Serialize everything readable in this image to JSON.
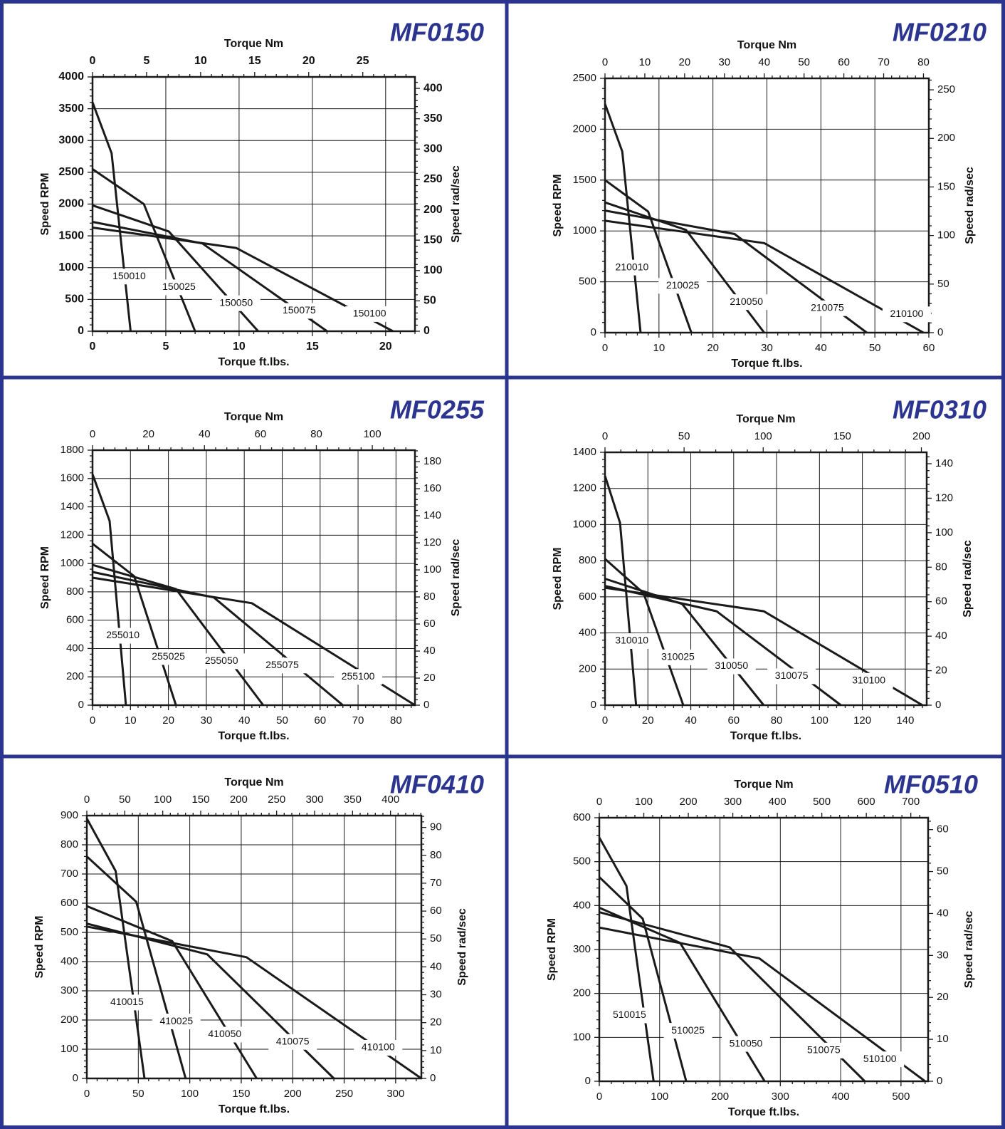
{
  "colors": {
    "frame": "#2b3590",
    "title": "#2b3590",
    "line": "#1a1a1a",
    "grid": "#1a1a1a"
  },
  "chart_data": [
    {
      "type": "line",
      "title": "MF0150",
      "x_label": "Torque ft.lbs.",
      "x2_label": "Torque Nm",
      "y_label": "Speed RPM",
      "y2_label": "Speed rad/sec",
      "x_ticks": [
        "0",
        "5",
        "10",
        "15",
        "20"
      ],
      "x2_ticks": [
        "0",
        "5",
        "10",
        "15",
        "20",
        "25"
      ],
      "y_ticks": [
        "0",
        "500",
        "1000",
        "1500",
        "2000",
        "2500",
        "3000",
        "3500",
        "4000"
      ],
      "y2_ticks": [
        "0",
        "50",
        "100",
        "150",
        "200",
        "250",
        "300",
        "350",
        "400"
      ],
      "xlim": [
        0,
        22
      ],
      "ylim": [
        0,
        4000
      ],
      "x2_per_x": 1.3558,
      "y2_per_y": 0.10472,
      "grid": true,
      "tick_style": "bold",
      "series": [
        {
          "name": "150010",
          "points": [
            [
              0,
              3600
            ],
            [
              1.3,
              2800
            ],
            [
              2.6,
              0
            ]
          ],
          "label_at": [
            2.5,
            860
          ]
        },
        {
          "name": "150025",
          "points": [
            [
              0,
              2550
            ],
            [
              3.5,
              2000
            ],
            [
              7,
              0
            ]
          ],
          "label_at": [
            5.9,
            690
          ]
        },
        {
          "name": "150050",
          "points": [
            [
              0,
              1980
            ],
            [
              5.2,
              1570
            ],
            [
              11.3,
              0
            ]
          ],
          "label_at": [
            9.8,
            440
          ]
        },
        {
          "name": "150075",
          "points": [
            [
              0,
              1720
            ],
            [
              7.5,
              1380
            ],
            [
              16,
              0
            ]
          ],
          "label_at": [
            14.1,
            320
          ]
        },
        {
          "name": "150100",
          "points": [
            [
              0,
              1630
            ],
            [
              9.8,
              1310
            ],
            [
              20.5,
              0
            ]
          ],
          "label_at": [
            18.9,
            270
          ]
        }
      ]
    },
    {
      "type": "line",
      "title": "MF0210",
      "x_label": "Torque ft.lbs.",
      "x2_label": "Torque Nm",
      "y_label": "Speed RPM",
      "y2_label": "Speed rad/sec",
      "x_ticks": [
        "0",
        "10",
        "20",
        "30",
        "40",
        "50",
        "60"
      ],
      "x2_ticks": [
        "0",
        "10",
        "20",
        "30",
        "40",
        "50",
        "60",
        "70",
        "80"
      ],
      "y_ticks": [
        "0",
        "500",
        "1000",
        "1500",
        "2000",
        "2500"
      ],
      "y2_ticks": [
        "0",
        "50",
        "100",
        "150",
        "200",
        "250"
      ],
      "xlim": [
        0,
        60
      ],
      "ylim": [
        0,
        2500
      ],
      "x2_per_x": 1.3558,
      "y2_per_y": 0.10472,
      "grid": true,
      "tick_style": "normal",
      "series": [
        {
          "name": "210010",
          "points": [
            [
              0,
              2250
            ],
            [
              3.2,
              1780
            ],
            [
              6.6,
              0
            ]
          ],
          "label_at": [
            5,
            640
          ]
        },
        {
          "name": "210025",
          "points": [
            [
              0,
              1500
            ],
            [
              8,
              1190
            ],
            [
              16,
              0
            ]
          ],
          "label_at": [
            14.4,
            460
          ]
        },
        {
          "name": "210050",
          "points": [
            [
              0,
              1280
            ],
            [
              15,
              1010
            ],
            [
              29.5,
              0
            ]
          ],
          "label_at": [
            26.2,
            300
          ]
        },
        {
          "name": "210075",
          "points": [
            [
              0,
              1200
            ],
            [
              24,
              970
            ],
            [
              48.5,
              0
            ]
          ],
          "label_at": [
            41.2,
            240
          ]
        },
        {
          "name": "210100",
          "points": [
            [
              0,
              1100
            ],
            [
              29.5,
              880
            ],
            [
              59,
              0
            ]
          ],
          "label_at": [
            55.9,
            180
          ]
        }
      ]
    },
    {
      "type": "line",
      "title": "MF0255",
      "x_label": "Torque ft.lbs.",
      "x2_label": "Torque Nm",
      "y_label": "Speed RPM",
      "y2_label": "Speed rad/sec",
      "x_ticks": [
        "0",
        "10",
        "20",
        "30",
        "40",
        "50",
        "60",
        "70",
        "80"
      ],
      "x2_ticks": [
        "0",
        "20",
        "40",
        "60",
        "80",
        "100"
      ],
      "y_ticks": [
        "0",
        "200",
        "400",
        "600",
        "800",
        "1000",
        "1200",
        "1400",
        "1600",
        "1800"
      ],
      "y2_ticks": [
        "0",
        "20",
        "40",
        "60",
        "80",
        "100",
        "120",
        "140",
        "160",
        "180"
      ],
      "xlim": [
        0,
        85
      ],
      "ylim": [
        0,
        1800
      ],
      "x2_per_x": 1.3558,
      "y2_per_y": 0.10472,
      "grid": true,
      "tick_style": "normal",
      "series": [
        {
          "name": "255010",
          "points": [
            [
              0,
              1630
            ],
            [
              4.5,
              1300
            ],
            [
              8.8,
              0
            ]
          ],
          "label_at": [
            8,
            490
          ]
        },
        {
          "name": "255025",
          "points": [
            [
              0,
              1140
            ],
            [
              11,
              910
            ],
            [
              22,
              0
            ]
          ],
          "label_at": [
            20,
            340
          ]
        },
        {
          "name": "255050",
          "points": [
            [
              0,
              990
            ],
            [
              22,
              820
            ],
            [
              45,
              0
            ]
          ],
          "label_at": [
            34,
            310
          ]
        },
        {
          "name": "255075",
          "points": [
            [
              0,
              940
            ],
            [
              32,
              760
            ],
            [
              66,
              0
            ]
          ],
          "label_at": [
            50,
            280
          ]
        },
        {
          "name": "255100",
          "points": [
            [
              0,
              900
            ],
            [
              42,
              720
            ],
            [
              85,
              0
            ]
          ],
          "label_at": [
            70,
            200
          ]
        }
      ]
    },
    {
      "type": "line",
      "title": "MF0310",
      "x_label": "Torque ft.lbs.",
      "x2_label": "Torque Nm",
      "y_label": "Speed RPM",
      "y2_label": "Speed rad/sec",
      "x_ticks": [
        "0",
        "20",
        "40",
        "60",
        "80",
        "100",
        "120",
        "140"
      ],
      "x2_ticks": [
        "0",
        "50",
        "100",
        "150",
        "200"
      ],
      "y_ticks": [
        "0",
        "200",
        "400",
        "600",
        "800",
        "1000",
        "1200",
        "1400"
      ],
      "y2_ticks": [
        "0",
        "20",
        "40",
        "60",
        "80",
        "100",
        "120",
        "140"
      ],
      "xlim": [
        0,
        150
      ],
      "ylim": [
        0,
        1400
      ],
      "x2_per_x": 1.3558,
      "y2_per_y": 0.10472,
      "grid": true,
      "tick_style": "normal",
      "series": [
        {
          "name": "310010",
          "points": [
            [
              0,
              1270
            ],
            [
              7,
              1010
            ],
            [
              14.5,
              0
            ]
          ],
          "label_at": [
            12.5,
            355
          ]
        },
        {
          "name": "310025",
          "points": [
            [
              0,
              810
            ],
            [
              18,
              620
            ],
            [
              36.5,
              0
            ]
          ],
          "label_at": [
            34,
            265
          ]
        },
        {
          "name": "310050",
          "points": [
            [
              0,
              700
            ],
            [
              36,
              560
            ],
            [
              74,
              0
            ]
          ],
          "label_at": [
            59,
            215
          ]
        },
        {
          "name": "310075",
          "points": [
            [
              0,
              660
            ],
            [
              52,
              520
            ],
            [
              110,
              0
            ]
          ],
          "label_at": [
            87,
            160
          ]
        },
        {
          "name": "310100",
          "points": [
            [
              0,
              650
            ],
            [
              74,
              520
            ],
            [
              148,
              0
            ]
          ],
          "label_at": [
            123,
            135
          ]
        }
      ]
    },
    {
      "type": "line",
      "title": "MF0410",
      "x_label": "Torque ft.lbs.",
      "x2_label": "Torque Nm",
      "y_label": "Speed RPM",
      "y2_label": "Speed rad/sec",
      "x_ticks": [
        "0",
        "50",
        "100",
        "150",
        "200",
        "250",
        "300"
      ],
      "x2_ticks": [
        "0",
        "50",
        "100",
        "150",
        "200",
        "250",
        "300",
        "350",
        "400"
      ],
      "y_ticks": [
        "0",
        "100",
        "200",
        "300",
        "400",
        "500",
        "600",
        "700",
        "800",
        "900"
      ],
      "y2_ticks": [
        "0",
        "10",
        "20",
        "30",
        "40",
        "50",
        "60",
        "70",
        "80",
        "90"
      ],
      "xlim": [
        0,
        325
      ],
      "ylim": [
        0,
        900
      ],
      "x2_per_x": 1.3558,
      "y2_per_y": 0.10472,
      "grid": true,
      "tick_style": "normal",
      "series": [
        {
          "name": "410015",
          "points": [
            [
              0,
              890
            ],
            [
              28,
              710
            ],
            [
              56,
              0
            ]
          ],
          "label_at": [
            39,
            260
          ]
        },
        {
          "name": "410025",
          "points": [
            [
              0,
              760
            ],
            [
              48,
              605
            ],
            [
              96,
              0
            ]
          ],
          "label_at": [
            87,
            195
          ]
        },
        {
          "name": "410050",
          "points": [
            [
              0,
              590
            ],
            [
              83,
              470
            ],
            [
              165,
              0
            ]
          ],
          "label_at": [
            134,
            150
          ]
        },
        {
          "name": "410075",
          "points": [
            [
              0,
              530
            ],
            [
              117,
              425
            ],
            [
              240,
              0
            ]
          ],
          "label_at": [
            200,
            125
          ]
        },
        {
          "name": "410100",
          "points": [
            [
              0,
              520
            ],
            [
              155,
              415
            ],
            [
              325,
              0
            ]
          ],
          "label_at": [
            283,
            105
          ]
        }
      ]
    },
    {
      "type": "line",
      "title": "MF0510",
      "x_label": "Torque ft.lbs.",
      "x2_label": "Torque Nm",
      "y_label": "Speed RPM",
      "y2_label": "Speed rad/sec",
      "x_ticks": [
        "0",
        "100",
        "200",
        "300",
        "400",
        "500"
      ],
      "x2_ticks": [
        "0",
        "100",
        "200",
        "300",
        "400",
        "500",
        "600",
        "700"
      ],
      "y_ticks": [
        "0",
        "100",
        "200",
        "300",
        "400",
        "500",
        "600"
      ],
      "y2_ticks": [
        "0",
        "10",
        "20",
        "30",
        "40",
        "50",
        "60"
      ],
      "xlim": [
        0,
        545
      ],
      "ylim": [
        0,
        600
      ],
      "x2_per_x": 1.3558,
      "y2_per_y": 0.10472,
      "grid": true,
      "tick_style": "normal",
      "series": [
        {
          "name": "510015",
          "points": [
            [
              0,
              555
            ],
            [
              45,
              445
            ],
            [
              90,
              0
            ]
          ],
          "label_at": [
            50,
            150
          ]
        },
        {
          "name": "510025",
          "points": [
            [
              0,
              465
            ],
            [
              72,
              370
            ],
            [
              144,
              0
            ]
          ],
          "label_at": [
            147,
            115
          ]
        },
        {
          "name": "510050",
          "points": [
            [
              0,
              395
            ],
            [
              134,
              315
            ],
            [
              274,
              0
            ]
          ],
          "label_at": [
            243,
            85
          ]
        },
        {
          "name": "510075",
          "points": [
            [
              0,
              385
            ],
            [
              216,
              305
            ],
            [
              440,
              0
            ]
          ],
          "label_at": [
            372,
            70
          ]
        },
        {
          "name": "510100",
          "points": [
            [
              0,
              350
            ],
            [
              265,
              280
            ],
            [
              540,
              0
            ]
          ],
          "label_at": [
            465,
            50
          ]
        }
      ]
    }
  ]
}
